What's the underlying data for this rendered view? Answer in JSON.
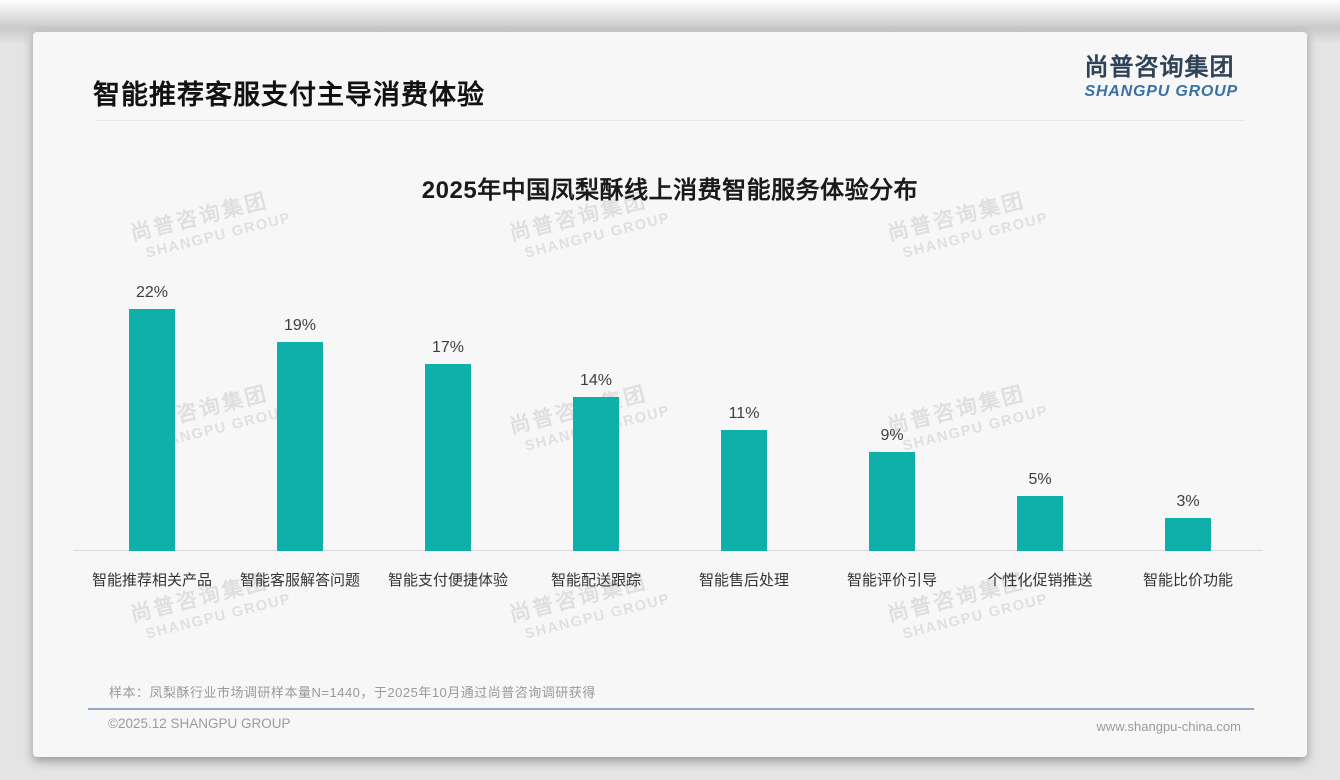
{
  "page": {
    "header": {
      "title": "智能推荐客服支付主导消费体验"
    },
    "logo": {
      "cn": "尚普咨询集团",
      "en": "SHANGPU GROUP"
    },
    "watermark": {
      "cn": "尚普咨询集团",
      "en": "SHANGPU GROUP"
    },
    "footer": {
      "note": "样本：凤梨酥行业市场调研样本量N=1440，于2025年10月通过尚普咨询调研获得",
      "copyright": "©2025.12 SHANGPU GROUP",
      "website": "www.shangpu-china.com"
    }
  },
  "colors": {
    "bar": "#0FB0AA",
    "logo_cn": "#2F4257",
    "logo_en": "#3A70A8",
    "footer_line": "#93A9C4",
    "axis_line": "#D9D9D9"
  },
  "chart_data": {
    "type": "bar",
    "title": "2025年中国凤梨酥线上消费智能服务体验分布",
    "categories": [
      "智能推荐相关产品",
      "智能客服解答问题",
      "智能支付便捷体验",
      "智能配送跟踪",
      "智能售后处理",
      "智能评价引导",
      "个性化促销推送",
      "智能比价功能"
    ],
    "values": [
      22,
      19,
      17,
      14,
      11,
      9,
      5,
      3
    ],
    "unit": "%",
    "xlabel": "",
    "ylabel": "",
    "ylim": [
      0,
      24
    ],
    "grid": false,
    "legend": false,
    "bar_color": "#0FB0AA",
    "value_label_format": "{value}%"
  }
}
